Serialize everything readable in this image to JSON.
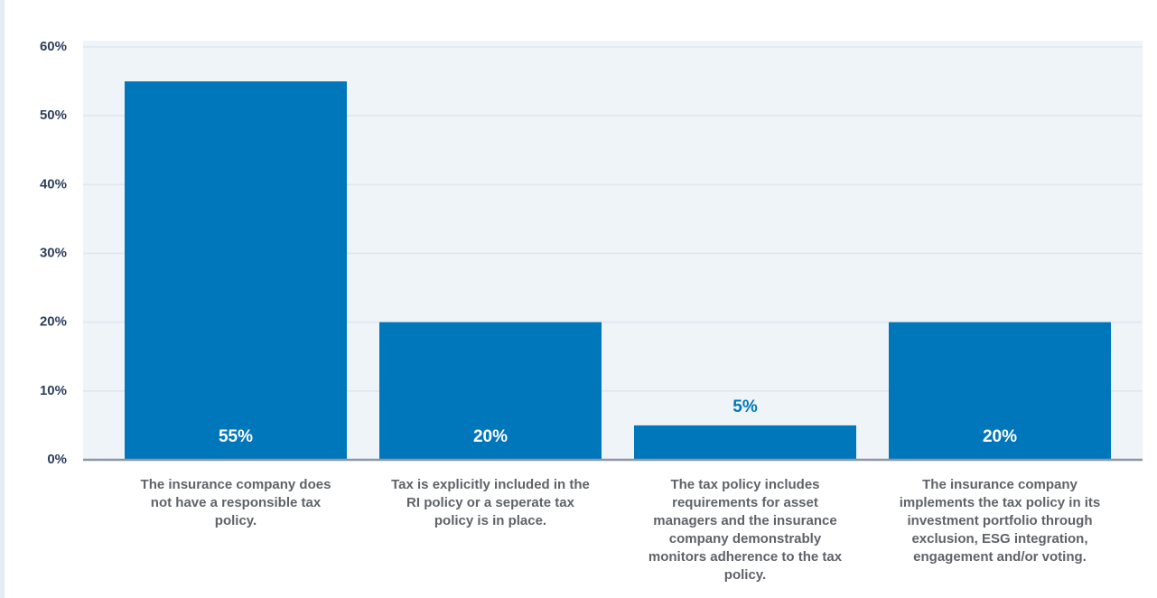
{
  "chart_data": {
    "type": "bar",
    "categories": [
      "The insurance company does not have a responsible tax policy.",
      "Tax is explicitly included in the RI policy or a seperate tax policy is in place.",
      "The tax policy includes requirements for asset managers and the insurance company demonstrably monitors adherence to the tax policy.",
      "The insurance company implements the tax policy in its investment portfolio through exclusion, ESG integration, engagement and/or voting."
    ],
    "values": [
      55,
      20,
      5,
      20
    ],
    "value_labels": [
      "55%",
      "20%",
      "5%",
      "20%"
    ],
    "color": "#0077bb",
    "ylim": [
      0,
      60
    ],
    "yticks": [
      {
        "value": 0,
        "label": "0%"
      },
      {
        "value": 10,
        "label": "10%"
      },
      {
        "value": 20,
        "label": "20%"
      },
      {
        "value": 30,
        "label": "30%"
      },
      {
        "value": 40,
        "label": "40%"
      },
      {
        "value": 50,
        "label": "50%"
      },
      {
        "value": 60,
        "label": "60%"
      }
    ],
    "grid": true
  }
}
